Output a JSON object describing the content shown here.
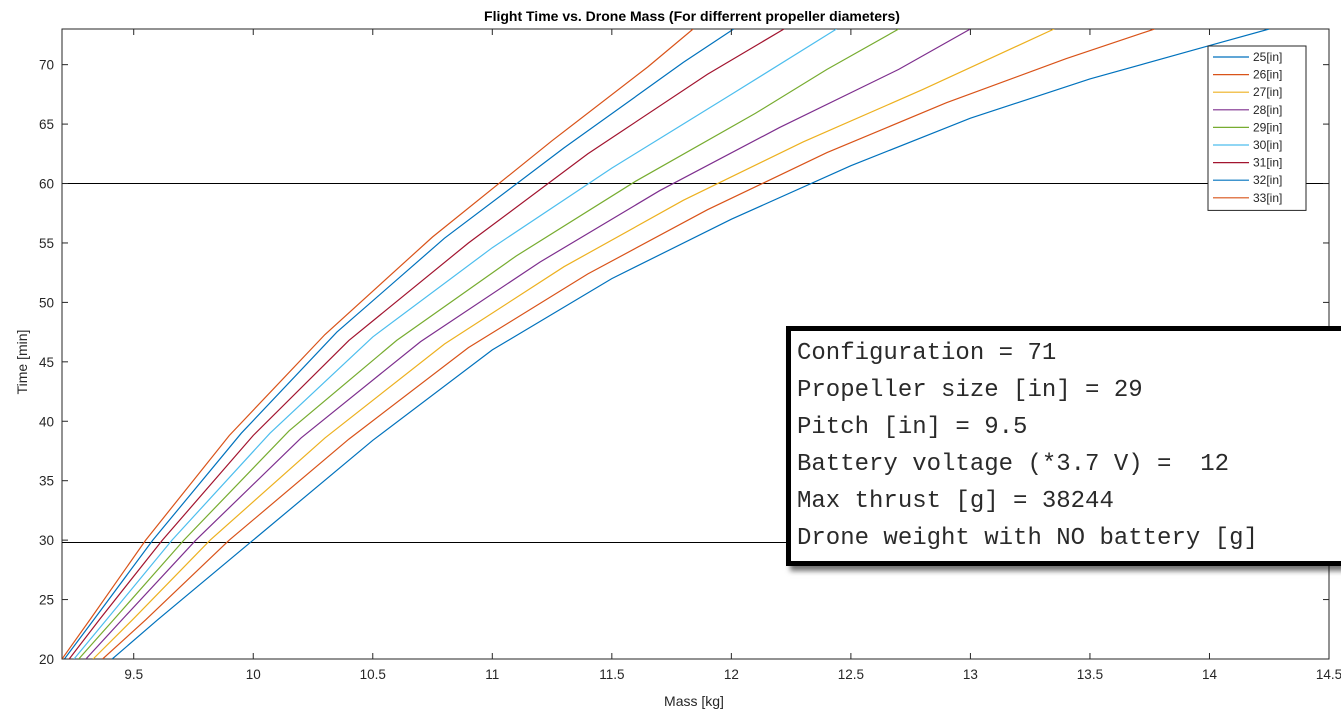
{
  "chart_data": {
    "type": "line",
    "title": "Flight Time vs. Drone Mass (For differrent propeller diameters)",
    "xlabel": "Mass [kg]",
    "ylabel": "Time [min]",
    "xlim": [
      9.2,
      14.5
    ],
    "ylim": [
      20,
      73
    ],
    "xticks": [
      9.5,
      10,
      10.5,
      11,
      11.5,
      12,
      12.5,
      13,
      13.5,
      14,
      14.5
    ],
    "xtick_labels": [
      "9.5",
      "10",
      "10.5",
      "11",
      "11.5",
      "12",
      "12.5",
      "13",
      "13.5",
      "14",
      "14.5"
    ],
    "yticks": [
      20,
      25,
      30,
      35,
      40,
      45,
      50,
      55,
      60,
      65,
      70
    ],
    "ytick_labels": [
      "20",
      "25",
      "30",
      "35",
      "40",
      "45",
      "50",
      "55",
      "60",
      "65",
      "70"
    ],
    "grid": false,
    "legend_position": "top-right",
    "reference_lines": [
      {
        "y": 60,
        "color": "#000000"
      },
      {
        "y": 29.8,
        "color": "#000000"
      }
    ],
    "series": [
      {
        "name": "25[in]",
        "color": "#0072BD",
        "x": [
          9.41,
          9.6,
          10.0,
          10.5,
          11.0,
          11.5,
          12.0,
          12.5,
          13.0,
          13.5,
          14.0,
          14.25
        ],
        "y": [
          20.0,
          23.3,
          30.0,
          38.4,
          46.0,
          52.0,
          57.0,
          61.5,
          65.5,
          68.8,
          71.6,
          73.0
        ]
      },
      {
        "name": "26[in]",
        "color": "#D95319",
        "x": [
          9.37,
          9.55,
          9.9,
          10.4,
          10.9,
          11.4,
          11.9,
          12.4,
          12.9,
          13.4,
          13.77
        ],
        "y": [
          20.0,
          23.3,
          30.0,
          38.5,
          46.2,
          52.4,
          57.8,
          62.6,
          66.8,
          70.5,
          73.0
        ]
      },
      {
        "name": "27[in]",
        "color": "#EDB120",
        "x": [
          9.33,
          9.5,
          9.82,
          10.3,
          10.8,
          11.3,
          11.8,
          12.3,
          12.8,
          13.35
        ],
        "y": [
          20.0,
          23.4,
          30.0,
          38.6,
          46.5,
          53.0,
          58.6,
          63.5,
          67.9,
          73.0
        ]
      },
      {
        "name": "28[in]",
        "color": "#7E2F8E",
        "x": [
          9.3,
          9.46,
          9.76,
          10.2,
          10.7,
          11.2,
          11.7,
          12.2,
          12.7,
          13.0
        ],
        "y": [
          20.0,
          23.5,
          30.0,
          38.6,
          46.7,
          53.4,
          59.4,
          64.7,
          69.6,
          73.0
        ]
      },
      {
        "name": "29[in]",
        "color": "#77AC30",
        "x": [
          9.27,
          9.42,
          9.71,
          10.15,
          10.6,
          11.1,
          11.6,
          12.1,
          12.4,
          12.7
        ],
        "y": [
          20.0,
          23.4,
          30.0,
          39.2,
          46.8,
          53.9,
          60.2,
          65.9,
          69.6,
          73.0
        ]
      },
      {
        "name": "30[in]",
        "color": "#4DBEEE",
        "x": [
          9.25,
          9.39,
          9.66,
          10.07,
          10.5,
          11.0,
          11.5,
          12.0,
          12.44
        ],
        "y": [
          20.0,
          23.4,
          30.0,
          39.0,
          47.1,
          54.6,
          61.3,
          67.5,
          73.0
        ]
      },
      {
        "name": "31[in]",
        "color": "#A2142F",
        "x": [
          9.23,
          9.36,
          9.62,
          10.0,
          10.4,
          10.9,
          11.4,
          11.9,
          12.22
        ],
        "y": [
          20.0,
          23.4,
          30.0,
          38.8,
          46.8,
          55.0,
          62.5,
          69.2,
          73.0
        ]
      },
      {
        "name": "32[in]",
        "color": "#0072BD",
        "x": [
          9.21,
          9.34,
          9.58,
          9.95,
          10.35,
          10.8,
          11.3,
          11.8,
          12.01
        ],
        "y": [
          20.0,
          23.5,
          30.0,
          39.0,
          47.5,
          55.4,
          63.0,
          70.2,
          73.0
        ]
      },
      {
        "name": "33[in]",
        "color": "#D95319",
        "x": [
          9.2,
          9.32,
          9.55,
          9.9,
          10.3,
          10.75,
          11.25,
          11.65,
          11.84
        ],
        "y": [
          20.0,
          23.4,
          30.0,
          38.8,
          47.3,
          55.5,
          63.6,
          69.8,
          73.0
        ]
      }
    ]
  },
  "console": {
    "lines": [
      "Configuration = 71",
      "Propeller size [in] = 29",
      "Pitch [in] = 9.5",
      "Battery voltage (*3.7 V) =  12",
      "Max thrust [g] = 38244",
      "Drone weight with NO battery [g]"
    ]
  }
}
